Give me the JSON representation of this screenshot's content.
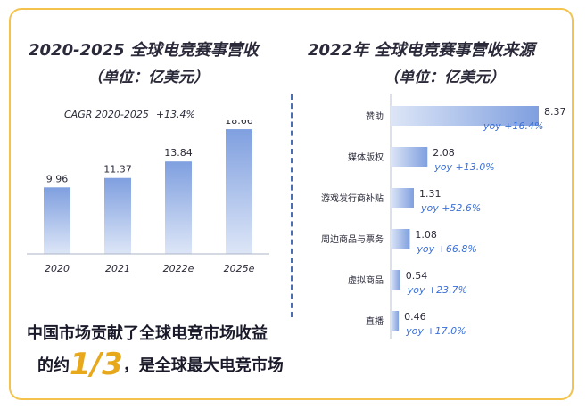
{
  "left_title": "2020-2025 全球电竞赛事营收",
  "left_unit": "（单位：亿美元）",
  "right_title": "2022年 全球电竞赛事营收来源",
  "right_unit": "（单位：亿美元）",
  "cagr_label": "CAGR 2020-2025",
  "cagr_value": "+13.4%",
  "footer": {
    "line1": "中国市场贡献了全球电竞市场收益",
    "line2_pre": "的约",
    "line2_big": "1/3",
    "line2_post": "，是全球最大电竞市场"
  },
  "colors": {
    "border": "#f4c34e",
    "bar_top": "#7f9fdf",
    "bar_bottom": "#dde6f7",
    "yoy_text": "#3a6fd8",
    "highlight": "#e8a81c"
  },
  "chart_data": [
    {
      "type": "bar",
      "categories": [
        "2020",
        "2021",
        "2022e",
        "2025e"
      ],
      "values": [
        9.96,
        11.37,
        13.84,
        18.66
      ],
      "value_labels": [
        "9.96",
        "11.37",
        "13.84",
        "18.66"
      ],
      "ylim": [
        0,
        20
      ]
    },
    {
      "type": "bar",
      "orientation": "horizontal",
      "categories": [
        "赞助",
        "媒体版权",
        "游戏发行商补贴",
        "周边商品与票务",
        "虚拟商品",
        "直播"
      ],
      "values": [
        8.37,
        2.08,
        1.31,
        1.08,
        0.54,
        0.46
      ],
      "value_labels": [
        "8.37",
        "2.08",
        "1.31",
        "1.08",
        "0.54",
        "0.46"
      ],
      "yoy_labels": [
        "yoy +16.4%",
        "yoy +13.0%",
        "yoy +52.6%",
        "yoy +66.8%",
        "yoy +23.7%",
        "yoy +17.0%"
      ],
      "xlim": [
        0,
        8.37
      ]
    }
  ]
}
